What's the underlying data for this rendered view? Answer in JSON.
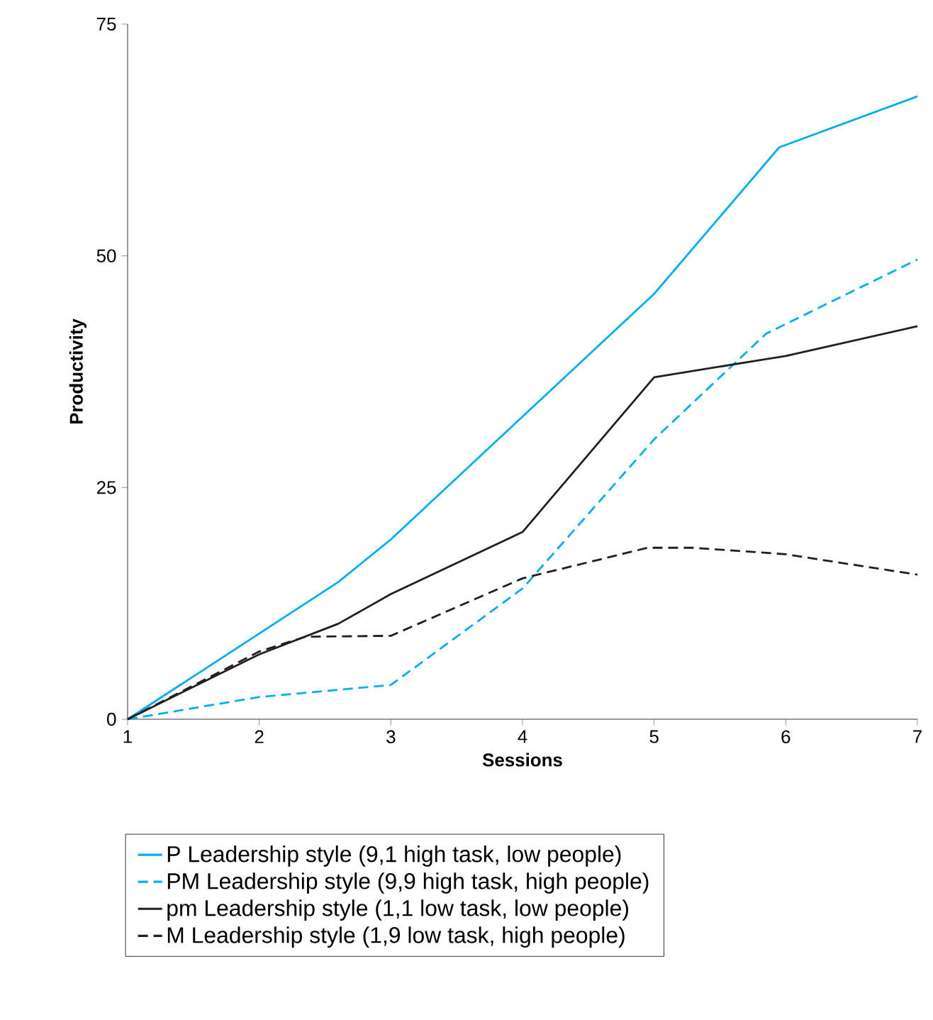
{
  "chart_data": {
    "type": "line",
    "xlabel": "Sessions",
    "ylabel": "Productivity",
    "xlim": [
      1,
      7
    ],
    "ylim": [
      0,
      75
    ],
    "xticks": [
      1,
      2,
      3,
      4,
      5,
      6,
      7
    ],
    "yticks": [
      0,
      25,
      50,
      75
    ],
    "legend": "bottom",
    "series": [
      {
        "name": "P Leadership style (9,1 high task, low people)",
        "color": "#00adef",
        "line_style": "solid",
        "x": [
          1,
          2.6,
          3,
          5,
          5.95,
          7
        ],
        "values": [
          0,
          14.8,
          19.4,
          45.9,
          61.7,
          67.2
        ]
      },
      {
        "name": "PM Leadership style (9,9 high task, high people)",
        "color": "#00adef",
        "line_style": "dashed",
        "x": [
          1,
          2,
          3,
          4,
          5,
          5.85,
          7
        ],
        "values": [
          0,
          2.4,
          3.7,
          14.1,
          30.2,
          41.6,
          49.6
        ]
      },
      {
        "name": "pm Leadership style (1,1 low task, low people)",
        "color": "#231f20",
        "line_style": "solid",
        "x": [
          1,
          2,
          2.6,
          3,
          4,
          5,
          6,
          7
        ],
        "values": [
          0,
          7.0,
          10.3,
          13.5,
          20.2,
          36.9,
          39.2,
          42.4
        ]
      },
      {
        "name": "M Leadership style (1,9 low task, high people)",
        "color": "#231f20",
        "line_style": "dashed",
        "x": [
          1,
          2,
          2.35,
          3,
          4,
          4.95,
          5.3,
          6,
          7
        ],
        "values": [
          0,
          7.3,
          8.9,
          9.0,
          15.2,
          18.5,
          18.5,
          17.8,
          15.6
        ]
      }
    ]
  }
}
